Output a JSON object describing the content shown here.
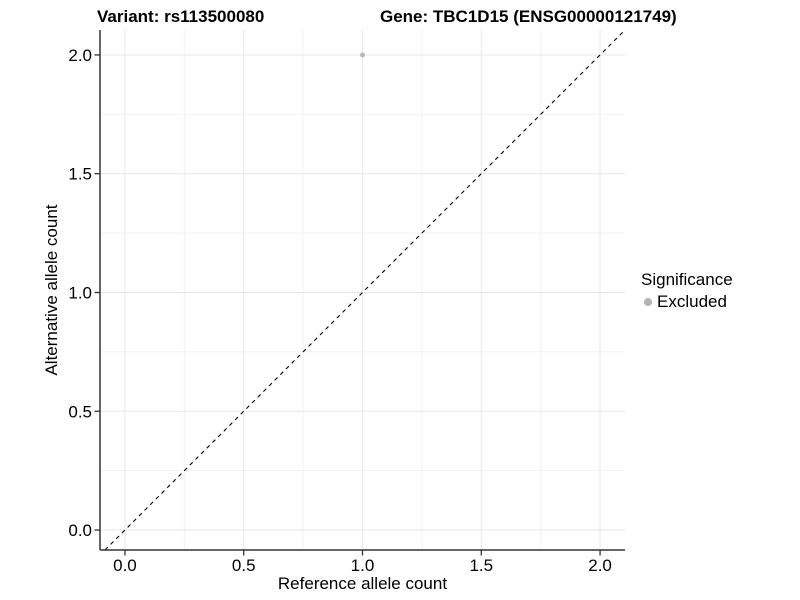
{
  "chart_data": {
    "type": "scatter",
    "titles": {
      "left": "Variant: rs113500080",
      "right": "Gene: TBC1D15 (ENSG00000121749)"
    },
    "xlabel": "Reference allele count",
    "ylabel": "Alternative allele count",
    "xlim": [
      -0.105,
      2.105
    ],
    "ylim": [
      -0.084,
      2.105
    ],
    "x_ticks": {
      "values": [
        0,
        0.5,
        1,
        1.5,
        2
      ],
      "labels": [
        "0.0",
        "0.5",
        "1.0",
        "1.5",
        "2.0"
      ]
    },
    "y_ticks": {
      "values": [
        0,
        0.5,
        1,
        1.5,
        2
      ],
      "labels": [
        "0.0",
        "0.5",
        "1.0",
        "1.5",
        "2.0"
      ]
    },
    "x_minor": [
      0.25,
      0.75,
      1.25,
      1.75
    ],
    "y_minor": [
      0.25,
      0.75,
      1.25,
      1.75
    ],
    "grid": true,
    "identity_line": {
      "slope": 1,
      "intercept": 0,
      "style": "dashed",
      "color": "#000000"
    },
    "series": [
      {
        "name": "Excluded",
        "color": "#b9b9b9",
        "points": [
          {
            "x": 1.0,
            "y": 2.0
          }
        ]
      }
    ],
    "legend": {
      "title": "Significance",
      "position": "right",
      "items": [
        {
          "label": "Excluded",
          "color": "#b3b3b3"
        }
      ]
    },
    "colors": {
      "grid_major": "#e7e7e7",
      "grid_minor": "#f2f2f2",
      "axis": "#333333",
      "text": "#000000"
    }
  }
}
